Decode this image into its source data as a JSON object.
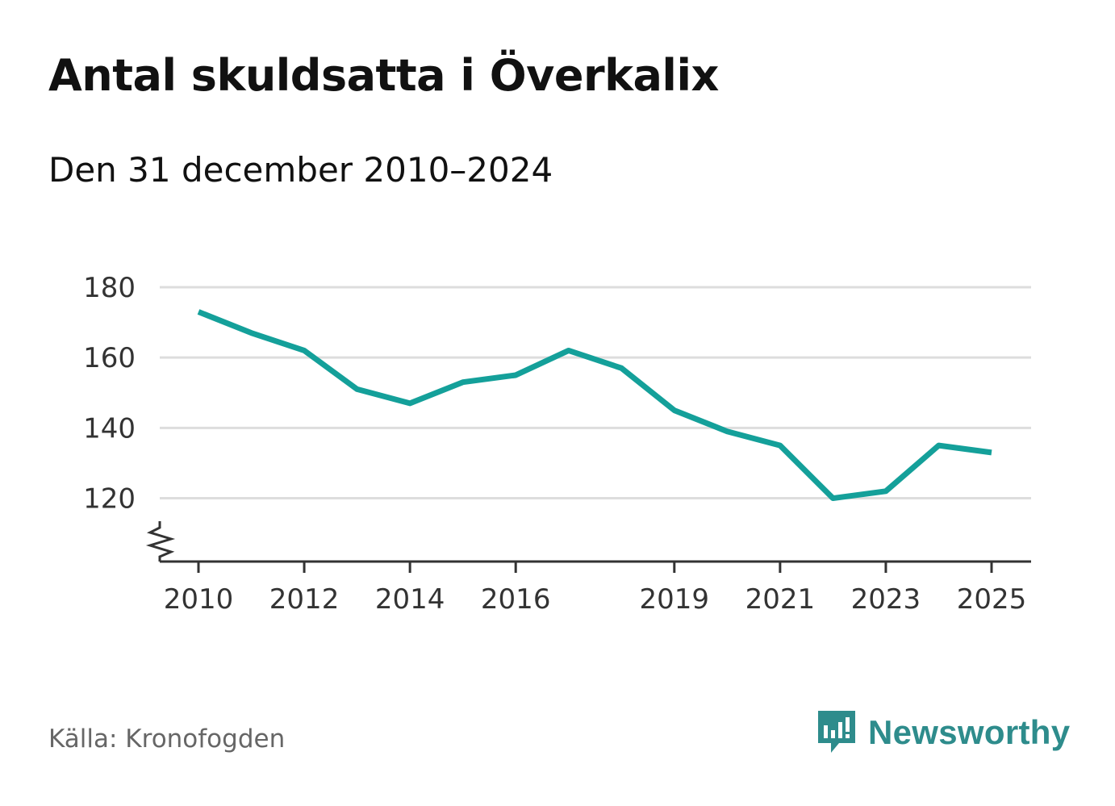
{
  "title": "Antal skuldsatta i Överkalix",
  "subtitle": "Den 31 december 2010–2024",
  "source": "Källa: Kronofogden",
  "brand": {
    "name": "Newsworthy",
    "icon": "newsworthy-logo-icon",
    "color": "#2e8c8c"
  },
  "colors": {
    "line": "#14a09a",
    "grid": "#dddddd",
    "axis": "#333333"
  },
  "chart_data": {
    "type": "line",
    "title": "Antal skuldsatta i Överkalix",
    "xlabel": "",
    "ylabel": "",
    "x": [
      2010,
      2011,
      2012,
      2013,
      2014,
      2015,
      2016,
      2017,
      2018,
      2019,
      2020,
      2021,
      2022,
      2023,
      2024,
      2025
    ],
    "series": [
      {
        "name": "Antal skuldsatta",
        "values": [
          173,
          167,
          162,
          151,
          147,
          153,
          155,
          162,
          157,
          145,
          139,
          135,
          120,
          122,
          135,
          133
        ]
      }
    ],
    "x_ticks": [
      "2010",
      "2012",
      "2014",
      "2016",
      "2019",
      "2021",
      "2023",
      "2025"
    ],
    "y_ticks": [
      "120",
      "140",
      "160",
      "180"
    ],
    "ylim": [
      102,
      180
    ],
    "axis_break": true,
    "grid": true
  }
}
